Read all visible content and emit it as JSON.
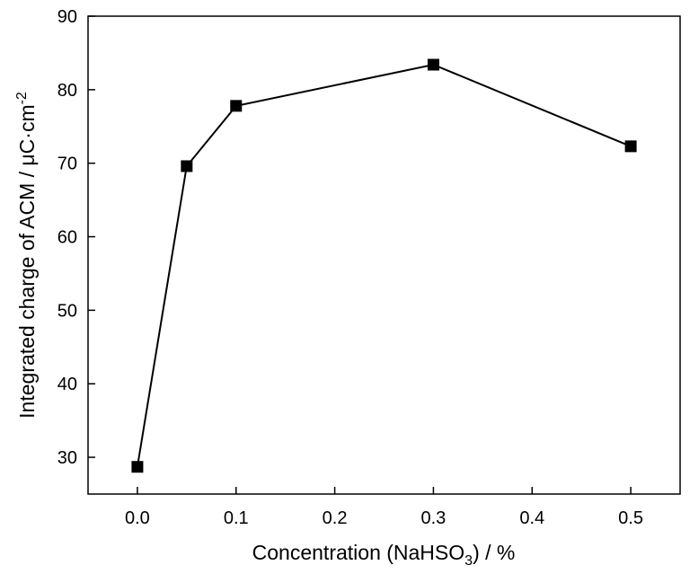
{
  "chart_data": {
    "type": "line",
    "xlabel": "Concentration (NaHSO",
    "xlabel_sub": "3",
    "xlabel_tail": ") / %",
    "ylabel": "Integrated charge of ACM / μC·cm",
    "ylabel_sup": "-2",
    "xlim": [
      -0.05,
      0.55
    ],
    "ylim": [
      25,
      90
    ],
    "xticks": [
      0.0,
      0.1,
      0.2,
      0.3,
      0.4,
      0.5
    ],
    "xtick_labels": [
      "0.0",
      "0.1",
      "0.2",
      "0.3",
      "0.4",
      "0.5"
    ],
    "yticks": [
      30,
      40,
      50,
      60,
      70,
      80,
      90
    ],
    "ytick_labels": [
      "30",
      "40",
      "50",
      "60",
      "70",
      "80",
      "90"
    ],
    "grid": false,
    "series": [
      {
        "marker": "square",
        "color": "#000000",
        "points": [
          {
            "x": 0.0,
            "y": 28.7
          },
          {
            "x": 0.05,
            "y": 69.6
          },
          {
            "x": 0.1,
            "y": 77.8
          },
          {
            "x": 0.3,
            "y": 83.4
          },
          {
            "x": 0.5,
            "y": 72.3
          }
        ]
      }
    ]
  }
}
